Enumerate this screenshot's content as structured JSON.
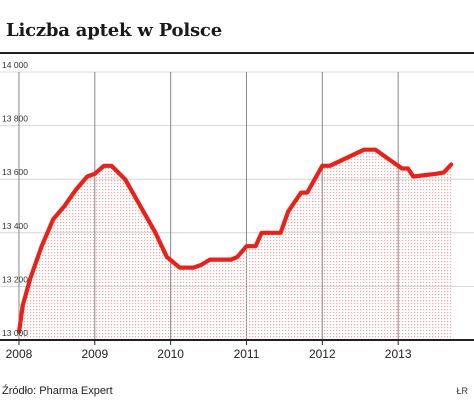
{
  "title": "Liczba aptek w Polsce",
  "source": "Źródło: Pharma Expert",
  "credit": "ŁR",
  "chart_data": {
    "type": "area",
    "series": [
      {
        "color": "#e8221b",
        "x": [
          2008.0,
          2008.05,
          2008.15,
          2008.3,
          2008.45,
          2008.6,
          2008.75,
          2008.9,
          2009.0,
          2009.12,
          2009.22,
          2009.4,
          2009.6,
          2009.8,
          2009.95,
          2010.12,
          2010.3,
          2010.4,
          2010.52,
          2010.8,
          2010.88,
          2011.0,
          2011.12,
          2011.2,
          2011.45,
          2011.55,
          2011.72,
          2011.8,
          2012.0,
          2012.1,
          2012.55,
          2012.7,
          2013.05,
          2013.13,
          2013.2,
          2013.5,
          2013.6,
          2013.7
        ],
        "values": [
          13030,
          13130,
          13230,
          13350,
          13450,
          13500,
          13560,
          13610,
          13620,
          13650,
          13650,
          13600,
          13500,
          13400,
          13310,
          13270,
          13270,
          13280,
          13300,
          13300,
          13310,
          13350,
          13350,
          13400,
          13400,
          13480,
          13550,
          13550,
          13650,
          13650,
          13710,
          13710,
          13640,
          13640,
          13610,
          13620,
          13625,
          13655
        ]
      }
    ],
    "x_ticks": [
      "2008",
      "2009",
      "2010",
      "2011",
      "2012",
      "2013"
    ],
    "y_ticks": [
      "13 000",
      "13 200",
      "13 400",
      "13 600",
      "13 800",
      "14 000"
    ],
    "xlim": [
      2007.75,
      2014.0
    ],
    "ylim": [
      13000,
      14000
    ],
    "grid": true
  }
}
